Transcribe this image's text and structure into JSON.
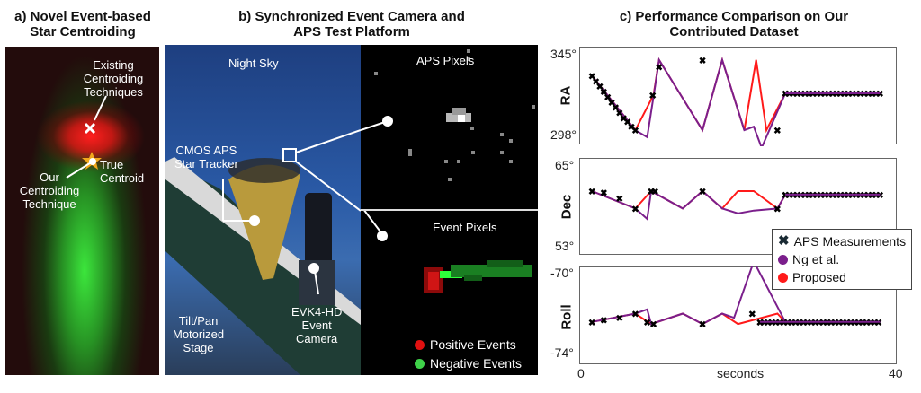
{
  "panel_a": {
    "title_line1": "a) Novel Event-based",
    "title_line2": "Star Centroiding",
    "label_existing": [
      "Existing",
      "Centroiding",
      "Techniques"
    ],
    "label_true": [
      "True",
      "Centroid"
    ],
    "label_ours": [
      "Our",
      "Centroiding",
      "Technique"
    ]
  },
  "panel_b": {
    "title_line1": "b) Synchronized Event Camera and",
    "title_line2": "APS Test Platform",
    "night_sky": "Night Sky",
    "cmos": [
      "CMOS APS",
      "Star Tracker"
    ],
    "stage": [
      "Tilt/Pan",
      "Motorized",
      "Stage"
    ],
    "evk": [
      "EVK4-HD",
      "Event",
      "Camera"
    ],
    "aps_pixels": "APS Pixels",
    "event_pixels": "Event Pixels",
    "legend": [
      {
        "label": "Positive Events",
        "color": "#e01010"
      },
      {
        "label": "Negative Events",
        "color": "#3fd24a"
      }
    ]
  },
  "panel_c": {
    "title_line1": "c) Performance Comparison on Our",
    "title_line2": "Contributed Dataset",
    "xlabel": "seconds",
    "x_ticks": [
      "0",
      "40"
    ],
    "legend": [
      {
        "label": "APS Measurements",
        "marker": "x",
        "color": "#000000"
      },
      {
        "label": "Ng et al.",
        "marker": "dot",
        "color": "#7b1f8c"
      },
      {
        "label": "Proposed",
        "marker": "dot",
        "color": "#ff1a1a"
      }
    ]
  },
  "chart_data": [
    {
      "type": "line",
      "title": "RA",
      "ylabel": "RA",
      "xlabel": "seconds",
      "ylim": [
        298,
        345
      ],
      "y_ticks": [
        "345°",
        "298°"
      ],
      "xlim": [
        0,
        40
      ],
      "series": [
        {
          "name": "Proposed",
          "x": [
            1.5,
            7,
            9.3,
            10,
            15.5,
            18,
            20.8,
            22.3,
            23.6,
            26,
            38
          ],
          "y": [
            331,
            300,
            320,
            340,
            300,
            340,
            300,
            340,
            300,
            321,
            321
          ]
        },
        {
          "name": "Ng et al.",
          "x": [
            1.5,
            7,
            8.5,
            9.5,
            10,
            15.5,
            18,
            20.8,
            22,
            23,
            26,
            38
          ],
          "y": [
            331,
            300,
            296,
            325,
            340,
            300,
            340,
            300,
            302,
            290,
            321,
            321
          ]
        },
        {
          "name": "APS Measurements",
          "x": [
            1.5,
            2,
            2.5,
            3,
            3.5,
            4,
            4.5,
            5,
            5.5,
            6,
            6.5,
            7,
            9.2,
            10,
            15.5,
            25,
            26,
            38
          ],
          "y": [
            331,
            328,
            325,
            322,
            319,
            316,
            313,
            310,
            307,
            305,
            302,
            300,
            320,
            336,
            340,
            300,
            321,
            321
          ]
        }
      ]
    },
    {
      "type": "line",
      "title": "Dec",
      "ylabel": "Dec",
      "xlabel": "seconds",
      "ylim": [
        53,
        65
      ],
      "y_ticks": [
        "65°",
        "53°"
      ],
      "xlim": [
        0,
        40
      ],
      "series": [
        {
          "name": "Proposed",
          "x": [
            1.5,
            7,
            9,
            13,
            15.5,
            18,
            20,
            22,
            25,
            26,
            38
          ],
          "y": [
            61,
            58.5,
            61,
            58.5,
            61,
            58.5,
            61,
            61,
            58.5,
            60.5,
            60.5
          ]
        },
        {
          "name": "Ng et al.",
          "x": [
            1.5,
            7,
            8.5,
            9,
            13,
            15.5,
            18,
            20,
            22,
            25,
            26,
            38
          ],
          "y": [
            61,
            58.5,
            57,
            61,
            58.5,
            61,
            58.5,
            57.8,
            58.2,
            58.5,
            60.5,
            60.5
          ]
        },
        {
          "name": "APS Measurements",
          "x": [
            1.5,
            3,
            5,
            7,
            9,
            9.5,
            15.5,
            25,
            26,
            38
          ],
          "y": [
            61,
            60.8,
            60,
            58.5,
            61,
            61,
            61,
            58.5,
            60.5,
            60.5
          ]
        }
      ]
    },
    {
      "type": "line",
      "title": "Roll",
      "ylabel": "Roll",
      "xlabel": "seconds",
      "ylim": [
        -74,
        -70
      ],
      "y_ticks": [
        "-70°",
        "-74°"
      ],
      "xlim": [
        0,
        40
      ],
      "series": [
        {
          "name": "Proposed",
          "x": [
            1.5,
            7,
            9,
            13,
            15.5,
            18,
            20,
            25,
            26,
            38
          ],
          "y": [
            -72.4,
            -72.0,
            -72.5,
            -72.0,
            -72.5,
            -72.0,
            -72.5,
            -72.0,
            -72.4,
            -72.4
          ]
        },
        {
          "name": "Ng et al.",
          "x": [
            1.5,
            7,
            8.5,
            9,
            13,
            15.5,
            18,
            19.5,
            22,
            26,
            38
          ],
          "y": [
            -72.4,
            -72.0,
            -71.8,
            -72.5,
            -72.0,
            -72.5,
            -72.0,
            -72.2,
            -69.5,
            -72.4,
            -72.4
          ]
        },
        {
          "name": "APS Measurements",
          "x": [
            1.5,
            3,
            5,
            7,
            8.5,
            9.3,
            15.5,
            21.8,
            22.8,
            38
          ],
          "y": [
            -72.4,
            -72.3,
            -72.2,
            -72.0,
            -72.4,
            -72.5,
            -72.5,
            -72.0,
            -72.4,
            -72.4
          ]
        }
      ]
    }
  ]
}
